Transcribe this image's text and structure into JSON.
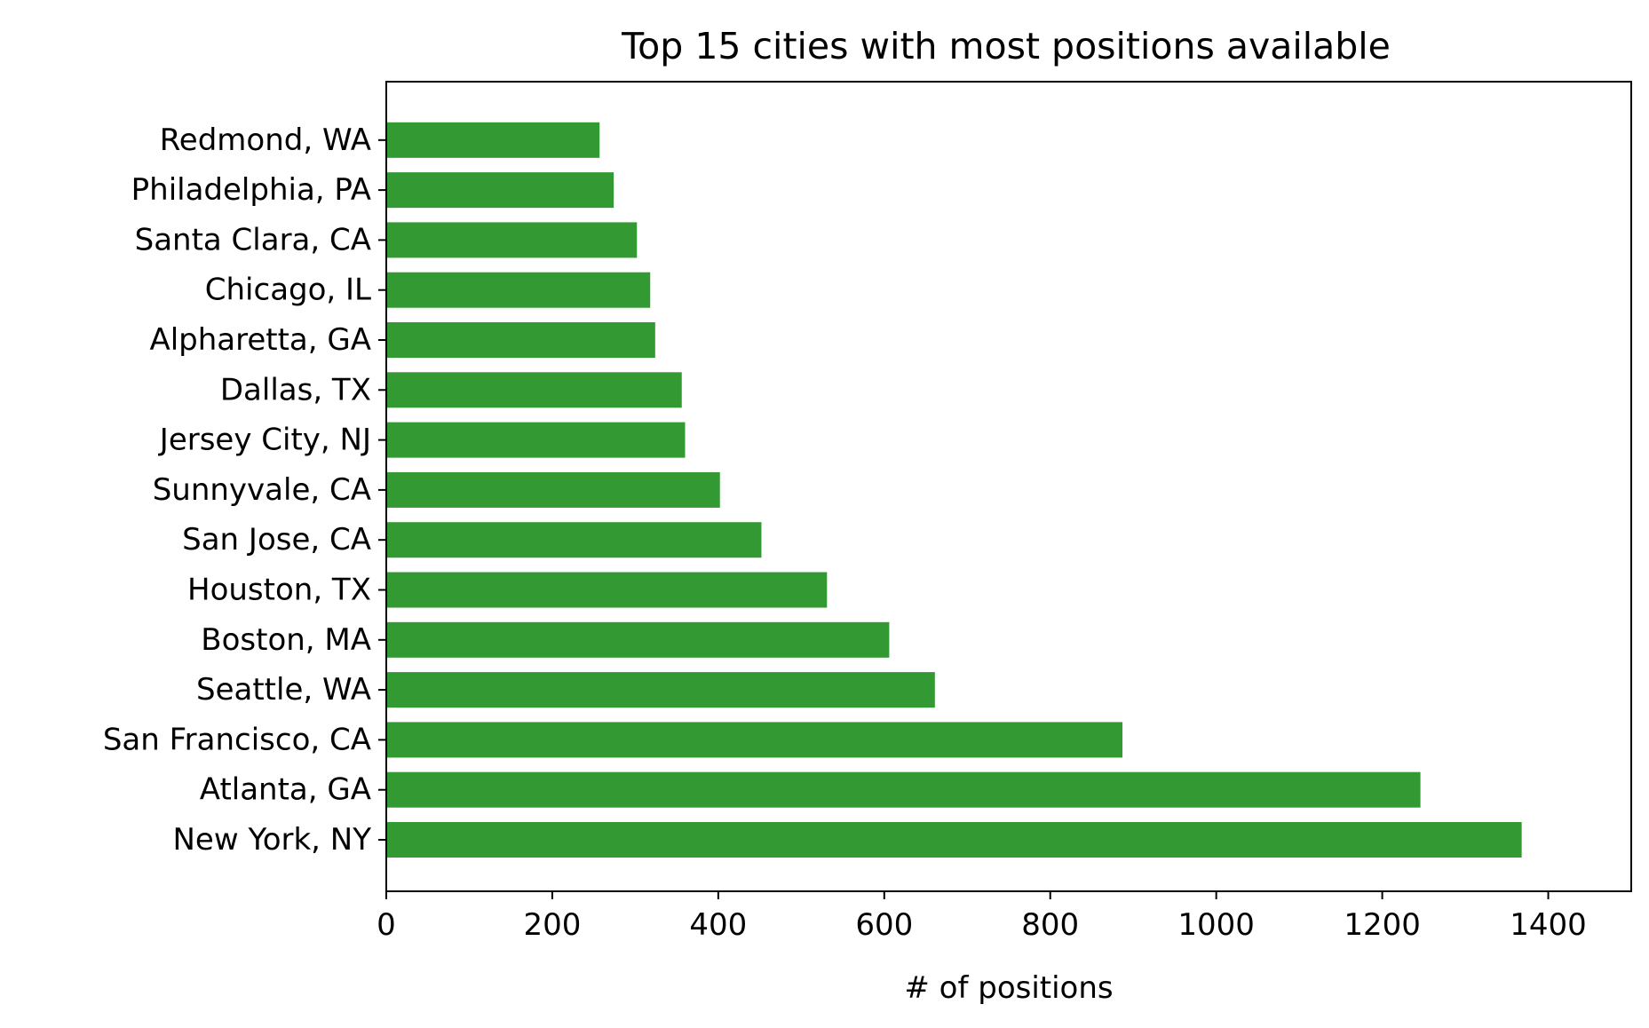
{
  "chart_data": {
    "type": "bar",
    "orientation": "horizontal",
    "title": "Top 15 cities with most positions available",
    "xlabel": "# of positions",
    "ylabel": "",
    "categories": [
      "New York, NY",
      "Atlanta, GA",
      "San Francisco, CA",
      "Seattle, WA",
      "Boston, MA",
      "Houston, TX",
      "San Jose, CA",
      "Sunnyvale, CA",
      "Jersey City, NJ",
      "Dallas, TX",
      "Alpharetta, GA",
      "Chicago, IL",
      "Santa Clara, CA",
      "Philadelphia, PA",
      "Redmond, WA"
    ],
    "values": [
      1368,
      1246,
      887,
      661,
      606,
      531,
      452,
      402,
      360,
      356,
      324,
      318,
      302,
      274,
      257
    ],
    "xlim": [
      0,
      1500
    ],
    "xticks": [
      0,
      200,
      400,
      600,
      800,
      1000,
      1200,
      1400
    ],
    "grid": false,
    "bar_color": "#339933"
  }
}
